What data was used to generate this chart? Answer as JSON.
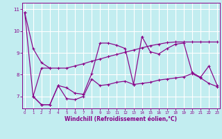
{
  "xlabel": "Windchill (Refroidissement éolien,°C)",
  "bg_color": "#c2edf0",
  "grid_color": "#aadddd",
  "line_color": "#880088",
  "xlim": [
    -0.3,
    23.3
  ],
  "ylim": [
    6.45,
    11.3
  ],
  "yticks": [
    7,
    8,
    9,
    10,
    11
  ],
  "xticks": [
    0,
    1,
    2,
    3,
    4,
    5,
    6,
    7,
    8,
    9,
    10,
    11,
    12,
    13,
    14,
    15,
    16,
    17,
    18,
    19,
    20,
    21,
    22,
    23
  ],
  "series1_x": [
    0,
    1,
    2,
    3
  ],
  "series1_y": [
    10.85,
    9.2,
    8.55,
    8.3
  ],
  "series2_x": [
    0,
    1,
    2,
    3,
    4,
    5,
    6,
    7,
    8,
    9,
    10,
    11,
    12,
    13,
    14,
    15,
    16,
    17,
    18,
    19,
    20,
    21,
    22,
    23
  ],
  "series2_y": [
    10.85,
    7.0,
    6.62,
    6.62,
    7.5,
    7.4,
    7.15,
    7.1,
    8.05,
    9.45,
    9.45,
    9.35,
    9.2,
    7.55,
    9.75,
    9.05,
    8.95,
    9.2,
    9.4,
    9.45,
    8.1,
    7.88,
    8.4,
    7.5
  ],
  "series3_x": [
    1,
    2,
    3,
    4,
    5,
    6,
    7,
    8,
    9,
    10,
    11,
    12,
    13,
    14,
    15,
    16,
    17,
    18,
    19,
    20,
    21,
    22,
    23
  ],
  "series3_y": [
    7.0,
    6.62,
    6.62,
    7.5,
    6.9,
    6.85,
    7.0,
    7.8,
    7.5,
    7.55,
    7.65,
    7.7,
    7.55,
    7.6,
    7.65,
    7.75,
    7.8,
    7.85,
    7.9,
    8.05,
    7.85,
    7.6,
    7.45
  ],
  "series4_x": [
    1,
    2,
    3,
    4,
    5,
    6,
    7,
    8,
    9,
    10,
    11,
    12,
    13,
    14,
    15,
    16,
    17,
    18,
    19,
    20,
    21,
    22,
    23
  ],
  "series4_y": [
    7.0,
    8.3,
    8.3,
    8.3,
    8.3,
    8.4,
    8.5,
    8.62,
    8.72,
    8.83,
    8.93,
    9.03,
    9.13,
    9.23,
    9.33,
    9.4,
    9.47,
    9.5,
    9.5,
    9.5,
    9.5,
    9.5,
    9.5
  ]
}
